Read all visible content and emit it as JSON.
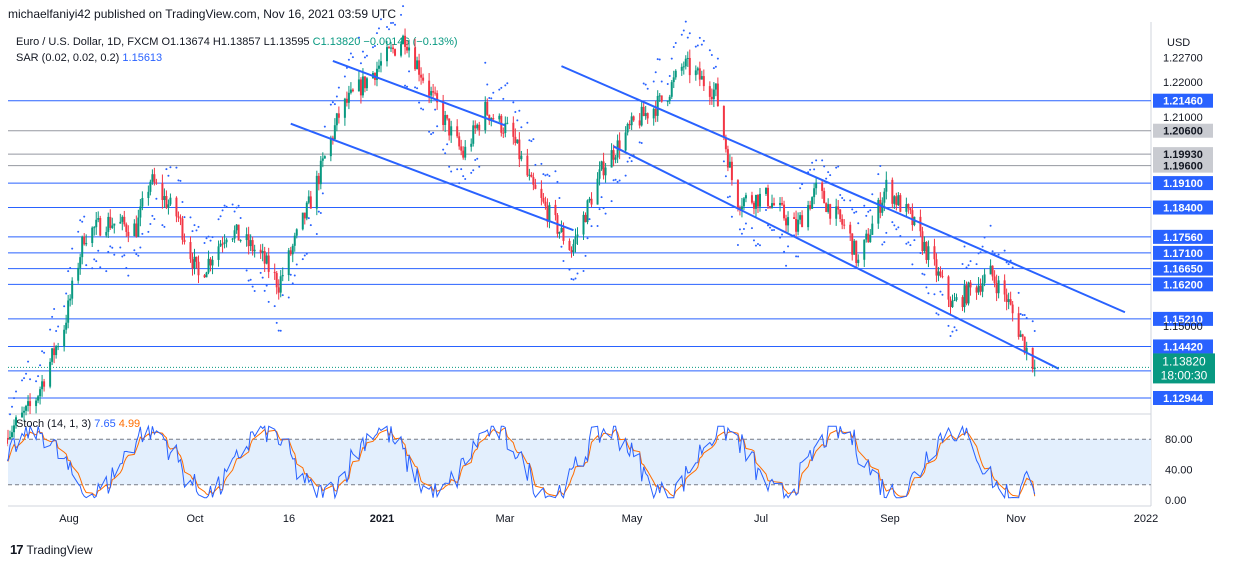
{
  "header": "michaelfaniyi42 published on TradingView.com, Nov 16, 2021 03:59 UTC",
  "legend": {
    "symbol": "Euro / U.S. Dollar, 1D, FXCM",
    "open": "O1.13674",
    "high": "H1.13857",
    "low": "L1.13595",
    "close": "C1.13820",
    "change": "−0.00146 (−0.13%)",
    "sar_label": "SAR (0.02, 0.02, 0.2)",
    "sar_value": "1.15613"
  },
  "stoch_legend": {
    "label": "Stoch (14, 1, 3)",
    "k": "7.65",
    "d": "4.99"
  },
  "currency": "USD",
  "price_tag": {
    "price": "1.13820",
    "countdown": "18:00:30"
  },
  "footer": "TradingView",
  "colors": {
    "up": "#089981",
    "down": "#f23645",
    "level": "#2962ff",
    "sar": "#2962ff",
    "stoch_k": "#2962ff",
    "stoch_d": "#ff6d00",
    "gray_level": "#9598a1",
    "band_fill": "#e3effd"
  },
  "chart_data": {
    "type": "candlestick",
    "title": "Euro / U.S. Dollar, 1D, FXCM",
    "x_labels": [
      "Aug",
      "Oct",
      "16",
      "2021",
      "Mar",
      "May",
      "Jul",
      "Sep",
      "Nov",
      "2022"
    ],
    "y_ticks": [
      "1.22700",
      "1.22000",
      "1.21000",
      "1.15000"
    ],
    "ylim": [
      1.126,
      1.236
    ],
    "horizontal_levels": [
      {
        "price": 1.2146,
        "label": "1.21460",
        "style": "blue"
      },
      {
        "price": 1.206,
        "label": "1.20600",
        "style": "gray"
      },
      {
        "price": 1.1993,
        "label": "1.19930",
        "style": "gray"
      },
      {
        "price": 1.196,
        "label": "1.19600",
        "style": "gray"
      },
      {
        "price": 1.191,
        "label": "1.19100",
        "style": "blue"
      },
      {
        "price": 1.184,
        "label": "1.18400",
        "style": "blue"
      },
      {
        "price": 1.1756,
        "label": "1.17560",
        "style": "blue"
      },
      {
        "price": 1.171,
        "label": "1.17100",
        "style": "blue"
      },
      {
        "price": 1.1665,
        "label": "1.16650",
        "style": "blue"
      },
      {
        "price": 1.162,
        "label": "1.16200",
        "style": "blue"
      },
      {
        "price": 1.1521,
        "label": "1.15210",
        "style": "blue"
      },
      {
        "price": 1.1442,
        "label": "1.14420",
        "style": "blue"
      },
      {
        "price": 1.1372,
        "label": "1.13720",
        "style": "blue"
      },
      {
        "price": 1.12944,
        "label": "1.12944",
        "style": "blue"
      }
    ],
    "trend_channels": [
      {
        "line": "upper",
        "from": {
          "date": "2020-12-01",
          "price": 1.226
        },
        "to": {
          "date": "2021-02-25",
          "price": 1.2075
        }
      },
      {
        "line": "lower",
        "from": {
          "date": "2020-11-10",
          "price": 1.208
        },
        "to": {
          "date": "2021-03-31",
          "price": 1.1775
        }
      },
      {
        "line": "upper",
        "from": {
          "date": "2021-03-25",
          "price": 1.2245
        },
        "to": {
          "date": "2021-12-31",
          "price": 1.154
        }
      },
      {
        "line": "lower",
        "from": {
          "date": "2021-04-20",
          "price": 1.2015
        },
        "to": {
          "date": "2021-11-28",
          "price": 1.1378
        }
      }
    ],
    "close_path": [
      [
        "2020-06-20",
        1.118
      ],
      [
        "2020-07-05",
        1.128
      ],
      [
        "2020-07-20",
        1.15
      ],
      [
        "2020-07-30",
        1.176
      ],
      [
        "2020-08-10",
        1.18
      ],
      [
        "2020-08-25",
        1.178
      ],
      [
        "2020-09-01",
        1.192
      ],
      [
        "2020-09-15",
        1.181
      ],
      [
        "2020-09-25",
        1.164
      ],
      [
        "2020-10-10",
        1.178
      ],
      [
        "2020-10-25",
        1.171
      ],
      [
        "2020-11-04",
        1.162
      ],
      [
        "2020-11-20",
        1.186
      ],
      [
        "2020-12-05",
        1.212
      ],
      [
        "2020-12-20",
        1.222
      ],
      [
        "2021-01-06",
        1.233
      ],
      [
        "2021-01-20",
        1.215
      ],
      [
        "2021-02-04",
        1.199
      ],
      [
        "2021-02-15",
        1.212
      ],
      [
        "2021-02-28",
        1.205
      ],
      [
        "2021-03-10",
        1.19
      ],
      [
        "2021-03-30",
        1.172
      ],
      [
        "2021-04-15",
        1.196
      ],
      [
        "2021-04-30",
        1.208
      ],
      [
        "2021-05-15",
        1.215
      ],
      [
        "2021-05-25",
        1.225
      ],
      [
        "2021-06-10",
        1.217
      ],
      [
        "2021-06-20",
        1.186
      ],
      [
        "2021-07-05",
        1.187
      ],
      [
        "2021-07-20",
        1.178
      ],
      [
        "2021-07-30",
        1.189
      ],
      [
        "2021-08-15",
        1.177
      ],
      [
        "2021-08-20",
        1.168
      ],
      [
        "2021-09-03",
        1.19
      ],
      [
        "2021-09-15",
        1.181
      ],
      [
        "2021-10-06",
        1.156
      ],
      [
        "2021-10-25",
        1.165
      ],
      [
        "2021-11-02",
        1.158
      ],
      [
        "2021-11-10",
        1.146
      ],
      [
        "2021-11-16",
        1.1382
      ]
    ],
    "stoch": {
      "ylim": [
        0,
        100
      ],
      "y_ticks": [
        80,
        40,
        0
      ],
      "bands": [
        20,
        80
      ],
      "k_last": 7.65,
      "d_last": 4.99
    }
  }
}
